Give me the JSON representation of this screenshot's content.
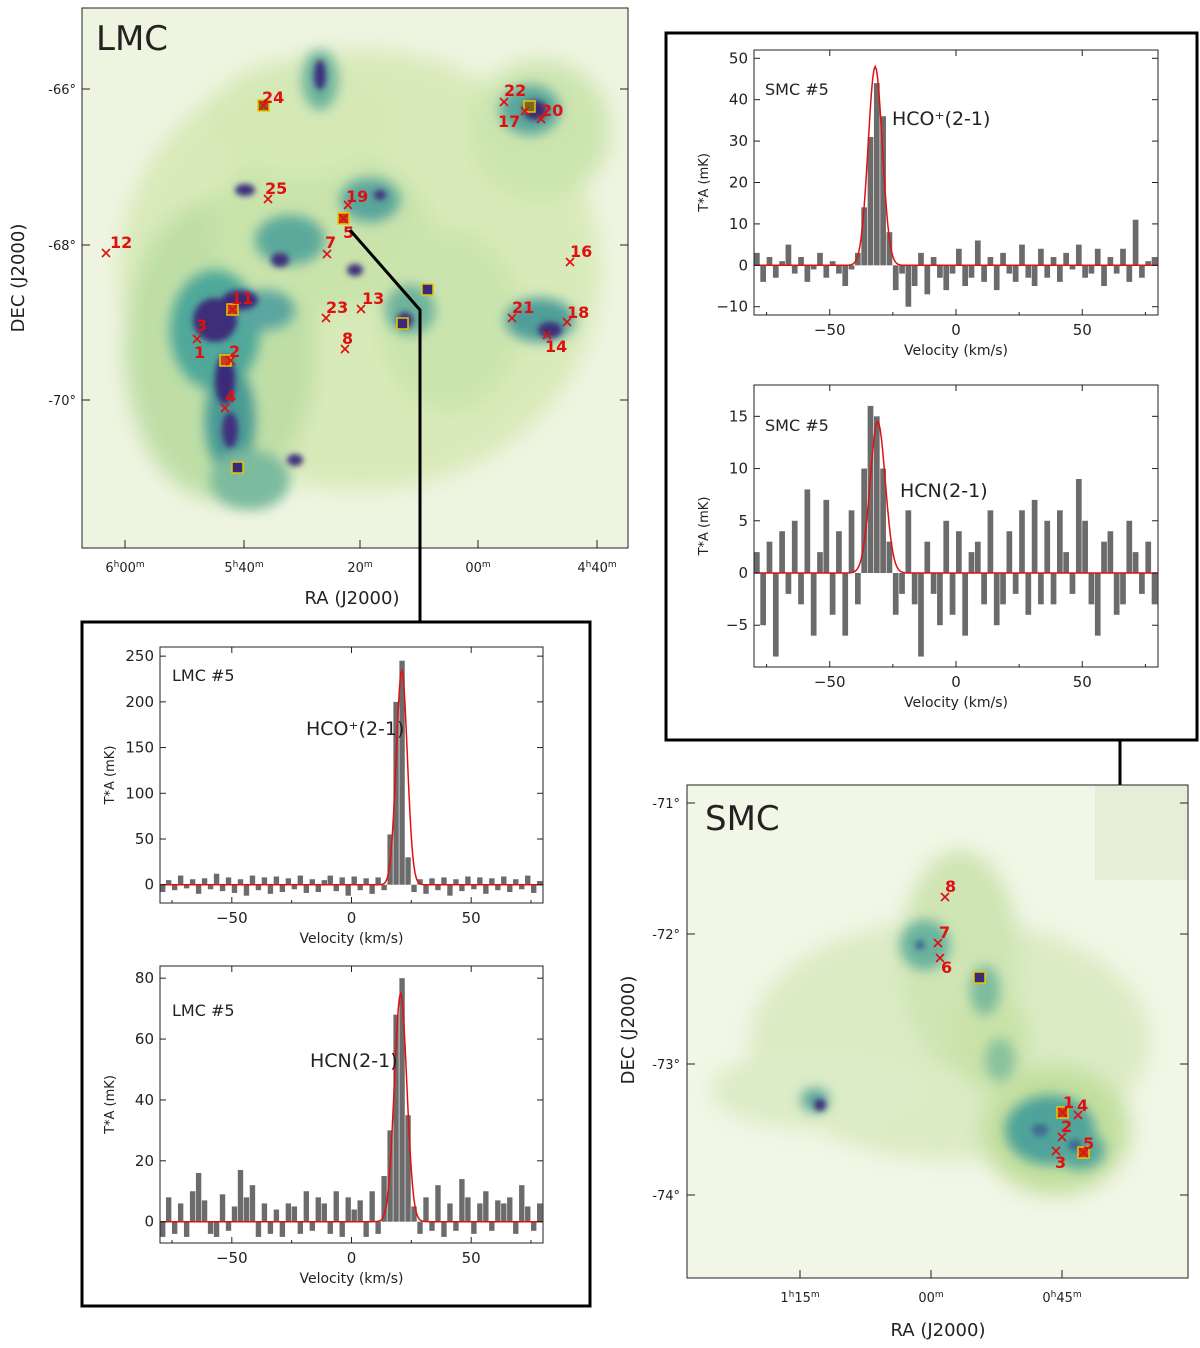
{
  "lmc_map": {
    "name": "LMC",
    "xlabel": "RA (J2000)",
    "ylabel": "DEC (J2000)",
    "dec_ticks": [
      "-66°",
      "-68°",
      "-70°"
    ],
    "ra_ticks": [
      {
        "h": "6",
        "m": "00"
      },
      {
        "h": "5",
        "m": "40"
      },
      {
        "h": "",
        "m": "20"
      },
      {
        "h": "",
        "m": "00"
      },
      {
        "h": "4",
        "m": "40"
      }
    ],
    "sources": [
      "1",
      "2",
      "3",
      "4",
      "5",
      "7",
      "8",
      "11",
      "12",
      "13",
      "14",
      "16",
      "17",
      "18",
      "19",
      "20",
      "21",
      "22",
      "23",
      "24",
      "25"
    ]
  },
  "smc_map": {
    "name": "SMC",
    "xlabel": "RA (J2000)",
    "ylabel": "DEC (J2000)",
    "dec_ticks": [
      "-71°",
      "-72°",
      "-73°",
      "-74°"
    ],
    "ra_ticks": [
      {
        "h": "1",
        "m": "15"
      },
      {
        "h": "",
        "m": "00"
      },
      {
        "h": "0",
        "m": "45"
      }
    ],
    "sources": [
      "1",
      "2",
      "3",
      "4",
      "5",
      "6",
      "7",
      "8"
    ]
  },
  "chart_data": [
    {
      "type": "bar",
      "panel": "smc-hco",
      "source_label": "SMC  #5",
      "line_label": "HCO⁺(2-1)",
      "xlabel": "Velocity  (km/s)",
      "ylabel": "T*A (mK)",
      "xlim": [
        -80,
        80
      ],
      "ylim": [
        -12,
        52
      ],
      "xticks": [
        -50,
        0,
        50
      ],
      "yticks": [
        -10,
        0,
        10,
        20,
        30,
        40,
        50
      ],
      "bin_width": 2.5,
      "fit": {
        "amp": 48,
        "center": -32,
        "sigma": 2.8
      },
      "x": [
        -78.75,
        -76.25,
        -73.75,
        -71.25,
        -68.75,
        -66.25,
        -63.75,
        -61.25,
        -58.75,
        -56.25,
        -53.75,
        -51.25,
        -48.75,
        -46.25,
        -43.75,
        -41.25,
        -38.75,
        -36.25,
        -33.75,
        -31.25,
        -28.75,
        -26.25,
        -23.75,
        -21.25,
        -18.75,
        -16.25,
        -13.75,
        -11.25,
        -8.75,
        -6.25,
        -3.75,
        -1.25,
        1.25,
        3.75,
        6.25,
        8.75,
        11.25,
        13.75,
        16.25,
        18.75,
        21.25,
        23.75,
        26.25,
        28.75,
        31.25,
        33.75,
        36.25,
        38.75,
        41.25,
        43.75,
        46.25,
        48.75,
        51.25,
        53.75,
        56.25,
        58.75,
        61.25,
        63.75,
        66.25,
        68.75,
        71.25,
        73.75,
        76.25,
        78.75
      ],
      "values": [
        3,
        -4,
        2,
        -3,
        1,
        5,
        -2,
        2,
        -4,
        -1,
        3,
        -3,
        1,
        -2,
        -5,
        -1,
        3,
        14,
        31,
        44,
        36,
        8,
        -6,
        -2,
        -10,
        -5,
        3,
        -7,
        2,
        -3,
        -6,
        -2,
        4,
        -5,
        -3,
        6,
        -4,
        2,
        -6,
        3,
        -2,
        -4,
        5,
        -3,
        -5,
        4,
        -3,
        2,
        -4,
        3,
        -1,
        5,
        -3,
        -2,
        4,
        -5,
        2,
        -2,
        4,
        -4,
        11,
        -3,
        1,
        2
      ]
    },
    {
      "type": "bar",
      "panel": "smc-hcn",
      "source_label": "SMC  #5",
      "line_label": "HCN(2-1)",
      "xlabel": "Velocity  (km/s)",
      "ylabel": "T*A (mK)",
      "xlim": [
        -80,
        80
      ],
      "ylim": [
        -9,
        18
      ],
      "xticks": [
        -50,
        0,
        50
      ],
      "yticks": [
        -5,
        0,
        5,
        10,
        15
      ],
      "bin_width": 2.5,
      "fit": {
        "amp": 14.5,
        "center": -31,
        "sigma": 3.0
      },
      "x": [
        -78.75,
        -76.25,
        -73.75,
        -71.25,
        -68.75,
        -66.25,
        -63.75,
        -61.25,
        -58.75,
        -56.25,
        -53.75,
        -51.25,
        -48.75,
        -46.25,
        -43.75,
        -41.25,
        -38.75,
        -36.25,
        -33.75,
        -31.25,
        -28.75,
        -26.25,
        -23.75,
        -21.25,
        -18.75,
        -16.25,
        -13.75,
        -11.25,
        -8.75,
        -6.25,
        -3.75,
        -1.25,
        1.25,
        3.75,
        6.25,
        8.75,
        11.25,
        13.75,
        16.25,
        18.75,
        21.25,
        23.75,
        26.25,
        28.75,
        31.25,
        33.75,
        36.25,
        38.75,
        41.25,
        43.75,
        46.25,
        48.75,
        51.25,
        53.75,
        56.25,
        58.75,
        61.25,
        63.75,
        66.25,
        68.75,
        71.25,
        73.75,
        76.25,
        78.75
      ],
      "values": [
        2,
        -5,
        3,
        -8,
        4,
        -2,
        5,
        -3,
        8,
        -6,
        2,
        7,
        -4,
        4,
        -6,
        6,
        -3,
        10,
        16,
        15,
        10,
        3,
        -4,
        -2,
        6,
        -3,
        -8,
        3,
        -2,
        -5,
        5,
        -4,
        4,
        -6,
        2,
        3,
        -3,
        6,
        -5,
        -3,
        4,
        -2,
        6,
        -4,
        7,
        -3,
        5,
        -3,
        6,
        2,
        -2,
        9,
        5,
        -3,
        -6,
        3,
        4,
        -4,
        -3,
        5,
        2,
        -2,
        3,
        -3
      ]
    },
    {
      "type": "bar",
      "panel": "lmc-hco",
      "source_label": "LMC  #5",
      "line_label": "HCO⁺(2-1)",
      "xlabel": "Velocity  (km/s)",
      "ylabel": "T*A (mK)",
      "xlim": [
        -80,
        80
      ],
      "ylim": [
        -20,
        260
      ],
      "xticks": [
        -50,
        0,
        50
      ],
      "yticks": [
        0,
        50,
        100,
        150,
        200,
        250
      ],
      "bin_width": 2.5,
      "fit": {
        "amp": 235,
        "center": 21,
        "sigma": 2.3
      },
      "x": [
        -78.75,
        -76.25,
        -73.75,
        -71.25,
        -68.75,
        -66.25,
        -63.75,
        -61.25,
        -58.75,
        -56.25,
        -53.75,
        -51.25,
        -48.75,
        -46.25,
        -43.75,
        -41.25,
        -38.75,
        -36.25,
        -33.75,
        -31.25,
        -28.75,
        -26.25,
        -23.75,
        -21.25,
        -18.75,
        -16.25,
        -13.75,
        -11.25,
        -8.75,
        -6.25,
        -3.75,
        -1.25,
        1.25,
        3.75,
        6.25,
        8.75,
        11.25,
        13.75,
        16.25,
        18.75,
        21.25,
        23.75,
        26.25,
        28.75,
        31.25,
        33.75,
        36.25,
        38.75,
        41.25,
        43.75,
        46.25,
        48.75,
        51.25,
        53.75,
        56.25,
        58.75,
        61.25,
        63.75,
        66.25,
        68.75,
        71.25,
        73.75,
        76.25,
        78.75
      ],
      "values": [
        -8,
        5,
        -6,
        10,
        -4,
        6,
        -10,
        7,
        -5,
        12,
        -7,
        8,
        -9,
        6,
        -12,
        10,
        -6,
        8,
        -10,
        9,
        -8,
        7,
        -5,
        10,
        -9,
        6,
        -8,
        5,
        10,
        -7,
        8,
        -12,
        9,
        -6,
        7,
        -10,
        8,
        -6,
        55,
        200,
        245,
        30,
        -8,
        6,
        -10,
        7,
        -6,
        8,
        -12,
        6,
        -7,
        9,
        -5,
        8,
        -10,
        7,
        -6,
        9,
        -8,
        6,
        -5,
        10,
        -9,
        4
      ]
    },
    {
      "type": "bar",
      "panel": "lmc-hcn",
      "source_label": "LMC  #5",
      "line_label": "HCN(2-1)",
      "xlabel": "Velocity  (km/s)",
      "ylabel": "T*A (mK)",
      "xlim": [
        -80,
        80
      ],
      "ylim": [
        -7,
        84
      ],
      "xticks": [
        -50,
        0,
        50
      ],
      "yticks": [
        0,
        20,
        40,
        60,
        80
      ],
      "bin_width": 2.5,
      "fit": {
        "amp": 75,
        "center": 20.5,
        "sigma": 2.6
      },
      "x": [
        -78.75,
        -76.25,
        -73.75,
        -71.25,
        -68.75,
        -66.25,
        -63.75,
        -61.25,
        -58.75,
        -56.25,
        -53.75,
        -51.25,
        -48.75,
        -46.25,
        -43.75,
        -41.25,
        -38.75,
        -36.25,
        -33.75,
        -31.25,
        -28.75,
        -26.25,
        -23.75,
        -21.25,
        -18.75,
        -16.25,
        -13.75,
        -11.25,
        -8.75,
        -6.25,
        -3.75,
        -1.25,
        1.25,
        3.75,
        6.25,
        8.75,
        11.25,
        13.75,
        16.25,
        18.75,
        21.25,
        23.75,
        26.25,
        28.75,
        31.25,
        33.75,
        36.25,
        38.75,
        41.25,
        43.75,
        46.25,
        48.75,
        51.25,
        53.75,
        56.25,
        58.75,
        61.25,
        63.75,
        66.25,
        68.75,
        71.25,
        73.75,
        76.25,
        78.75
      ],
      "values": [
        -5,
        8,
        -4,
        6,
        -5,
        10,
        16,
        7,
        -4,
        -5,
        9,
        -3,
        5,
        17,
        8,
        12,
        -5,
        6,
        -4,
        4,
        -5,
        6,
        5,
        -4,
        10,
        -3,
        8,
        6,
        -4,
        10,
        -5,
        8,
        4,
        7,
        -5,
        10,
        -4,
        15,
        30,
        68,
        80,
        35,
        5,
        -4,
        8,
        -3,
        12,
        -5,
        6,
        -3,
        14,
        8,
        -4,
        6,
        10,
        -3,
        7,
        6,
        8,
        -4,
        12,
        5,
        -3,
        6
      ]
    }
  ]
}
